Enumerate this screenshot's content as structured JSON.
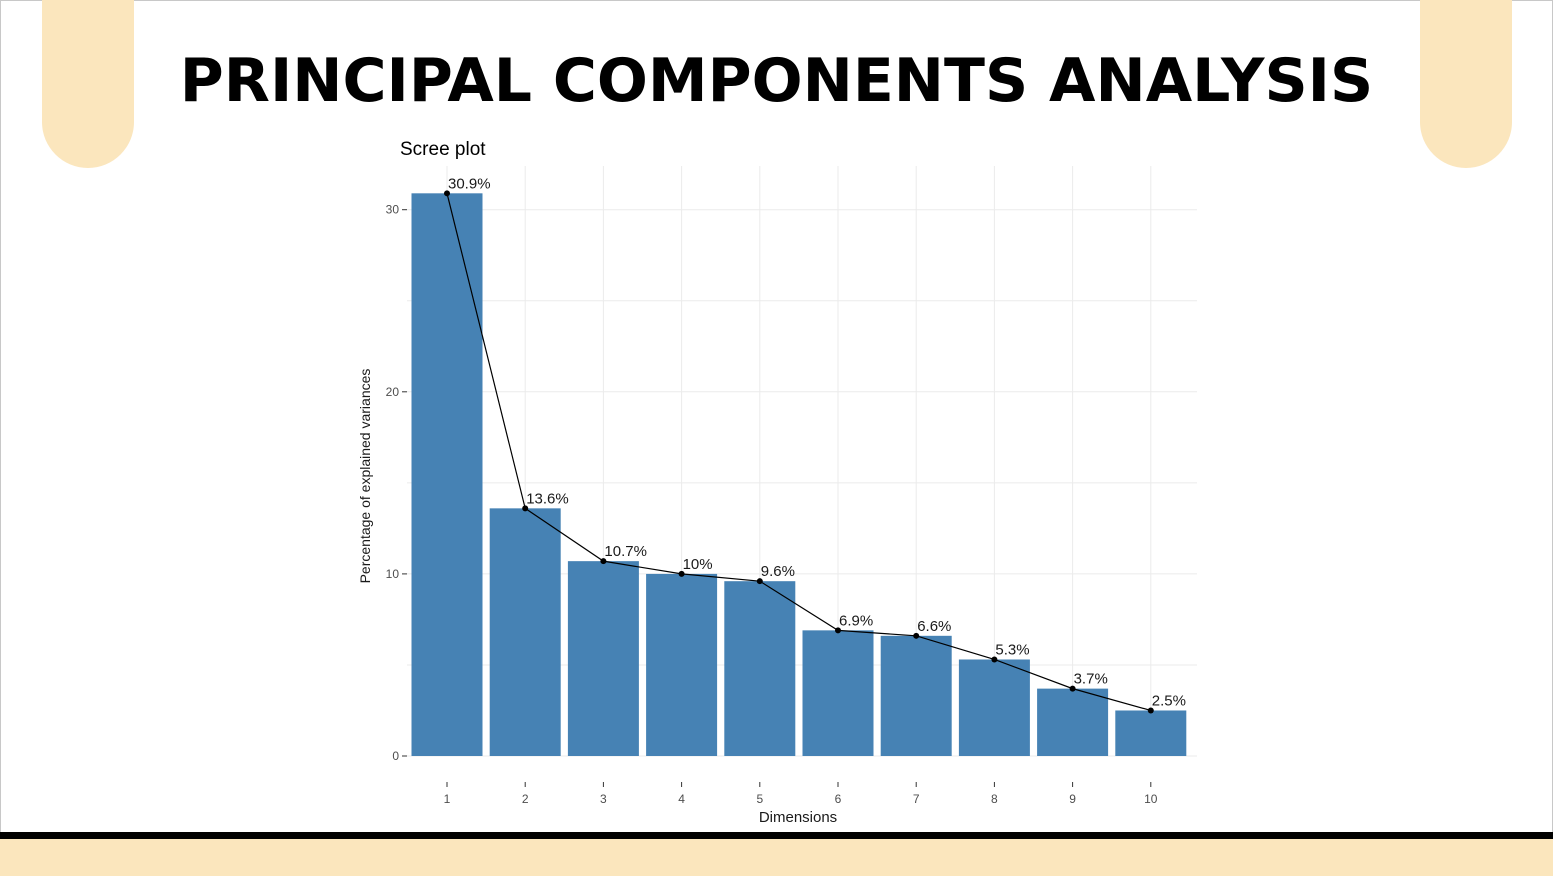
{
  "slide": {
    "title": "PRINCIPAL COMPONENTS ANALYSIS"
  },
  "colors": {
    "bar": "#4682b4",
    "accent": "#fbe6bd",
    "line": "#000000",
    "grid": "#ebebeb"
  },
  "chart_data": {
    "type": "bar",
    "title": "Scree plot",
    "xlabel": "Dimensions",
    "ylabel": "Percentage of explained variances",
    "categories": [
      "1",
      "2",
      "3",
      "4",
      "5",
      "6",
      "7",
      "8",
      "9",
      "10"
    ],
    "values": [
      30.9,
      13.6,
      10.7,
      10.0,
      9.6,
      6.9,
      6.6,
      5.3,
      3.7,
      2.5
    ],
    "data_labels": [
      "30.9%",
      "13.6%",
      "10.7%",
      "10%",
      "9.6%",
      "6.9%",
      "6.6%",
      "5.3%",
      "3.7%",
      "2.5%"
    ],
    "overlay": "line with points",
    "y_ticks": [
      0,
      10,
      20,
      30
    ],
    "ylim": [
      0,
      32.4
    ],
    "grid": true,
    "legend": "none"
  }
}
